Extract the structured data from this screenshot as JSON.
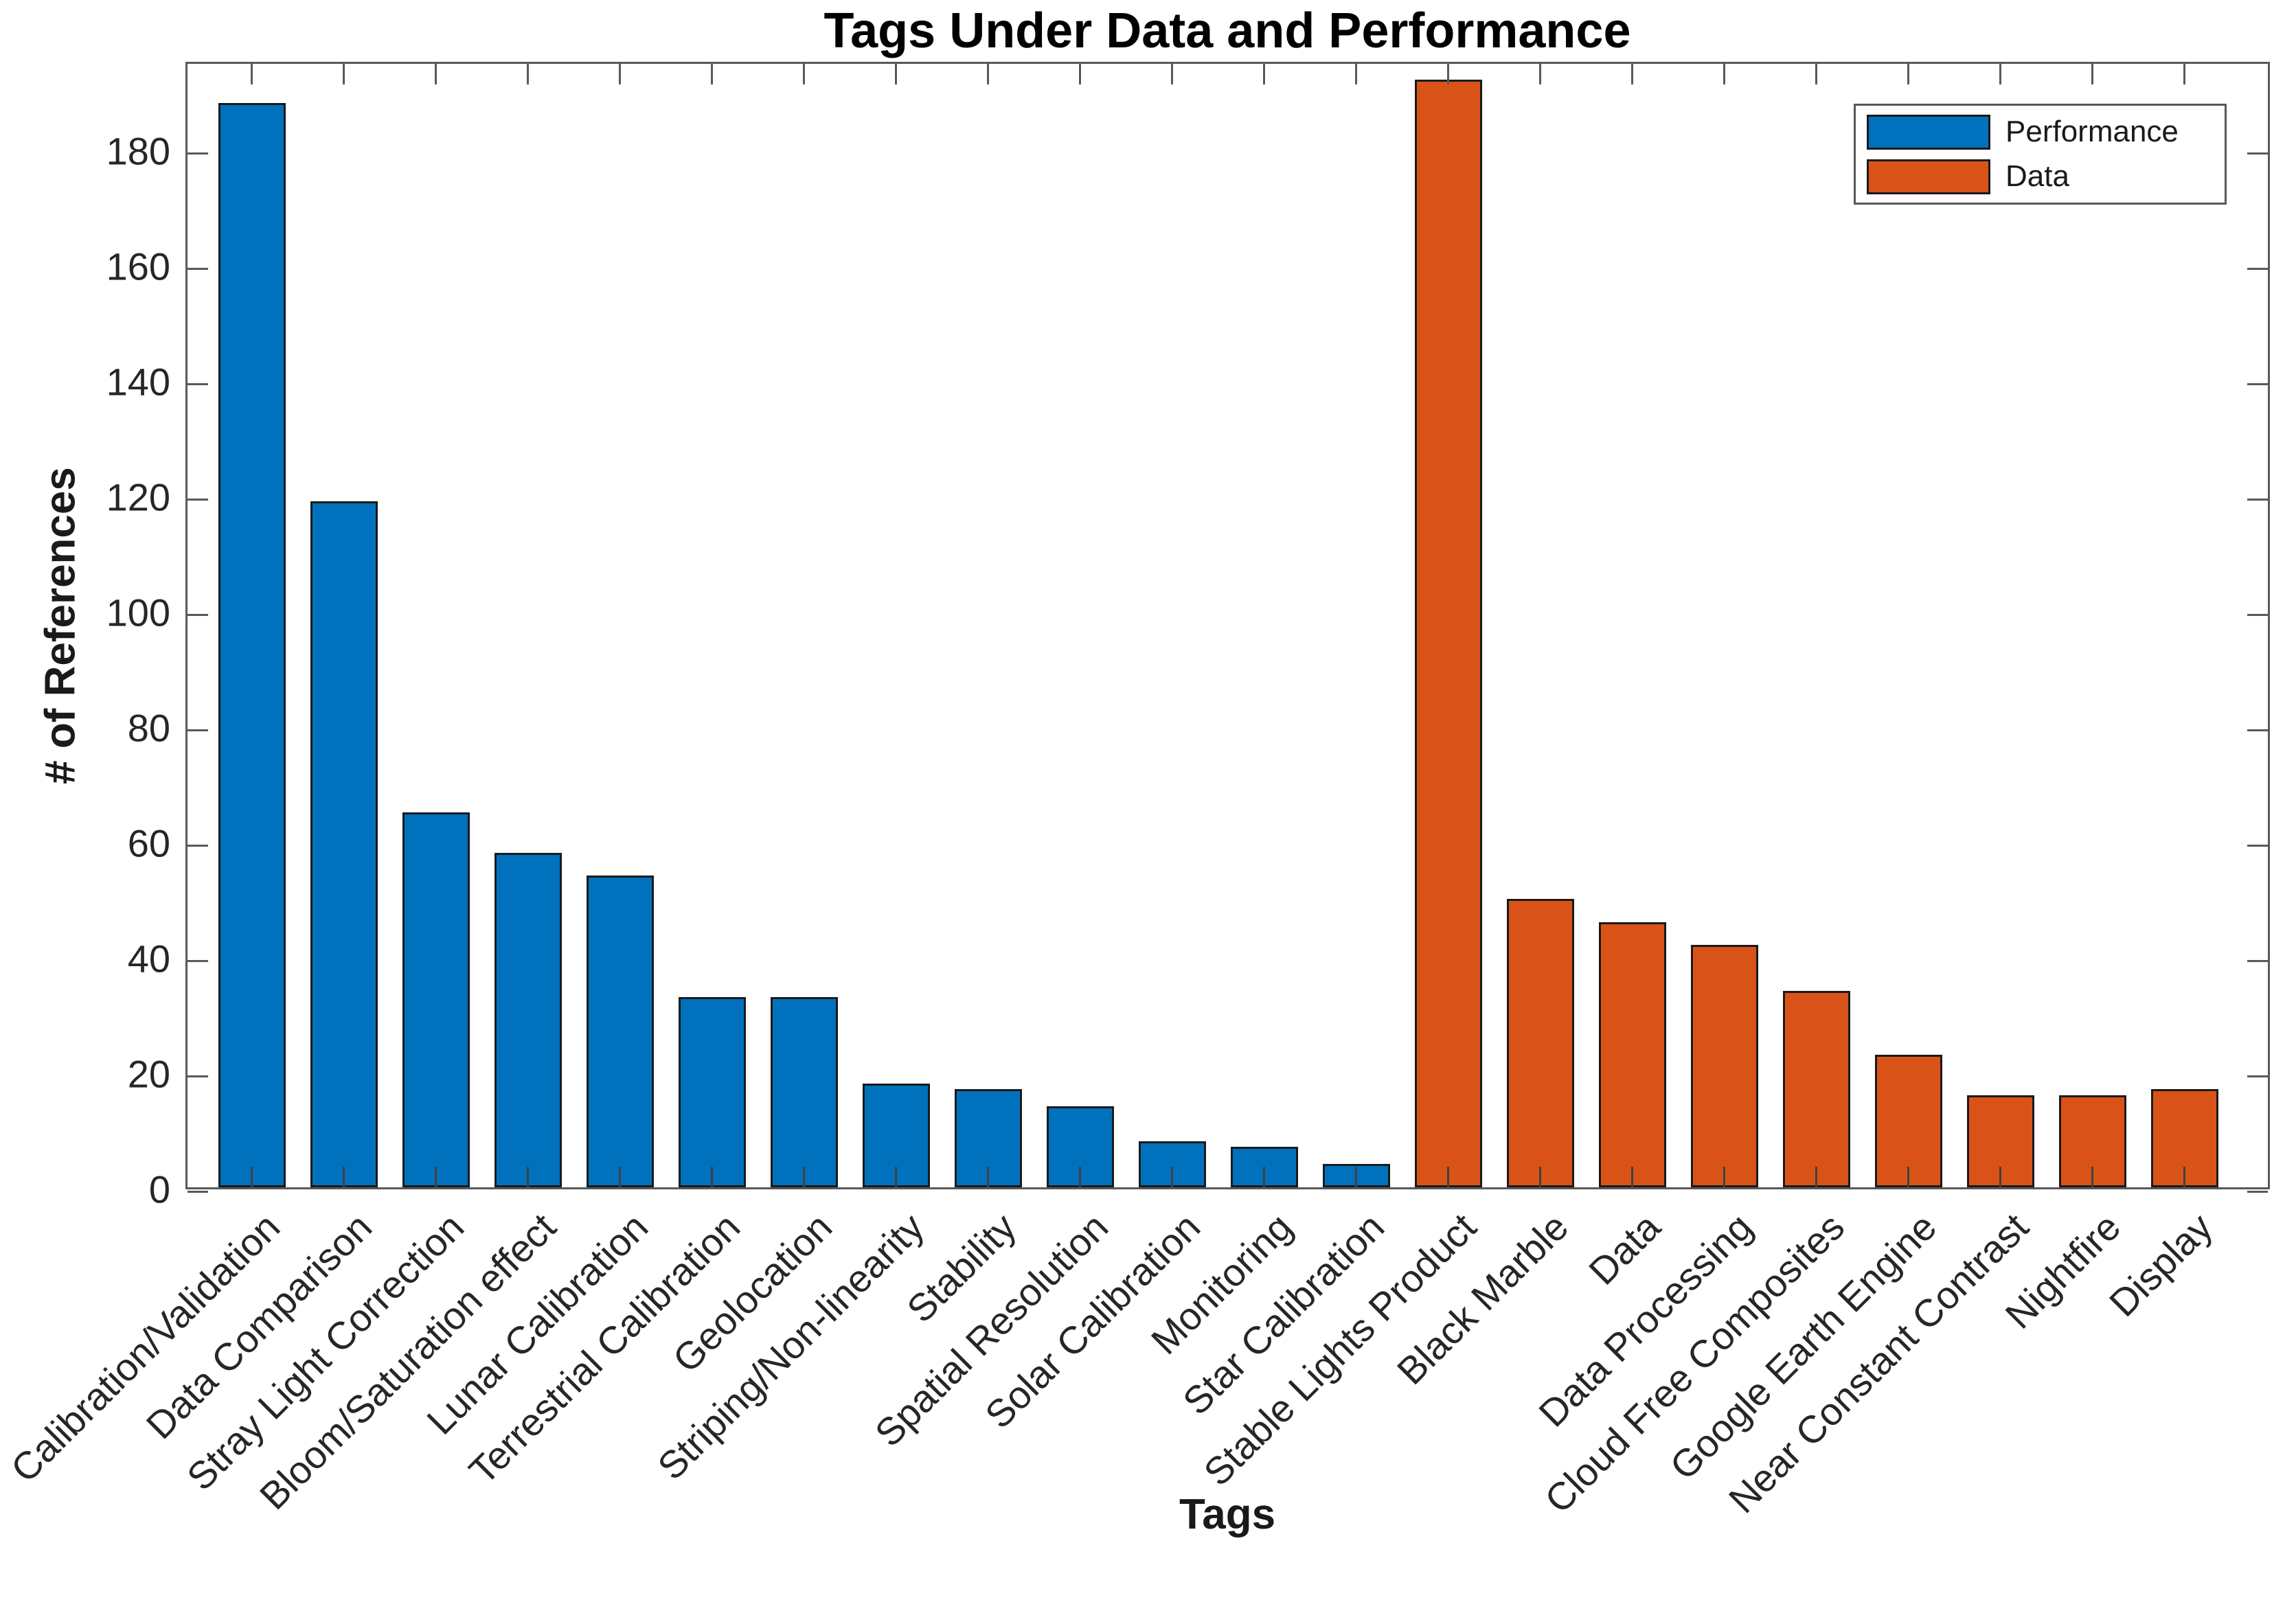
{
  "title": "Tags Under Data and Performance",
  "axes": {
    "xlabel": "Tags",
    "ylabel": "# of References"
  },
  "legend": {
    "position": "top-right",
    "entries": [
      {
        "label": "Performance",
        "color": "#0072BD"
      },
      {
        "label": "Data",
        "color": "#D95319"
      }
    ]
  },
  "style": {
    "frame_color": "#595959",
    "tick_color": "#595959",
    "tick_label_color": "#262626",
    "axis_label_color": "#1a1a1a",
    "title_color": "#000000",
    "bar_edge_color": "#1a1a1a",
    "background": "#ffffff"
  },
  "chart_data": {
    "type": "bar",
    "title": "Tags Under Data and Performance",
    "xlabel": "Tags",
    "ylabel": "# of References",
    "ylim": [
      0,
      195.5
    ],
    "yticks": [
      0,
      20,
      40,
      60,
      80,
      100,
      120,
      140,
      160,
      180
    ],
    "grid": false,
    "legend_position": "top-right",
    "series": [
      {
        "name": "Performance",
        "color": "#0072BD"
      },
      {
        "name": "Data",
        "color": "#D95319"
      }
    ],
    "categories": [
      "Calibration/Validation",
      "Data Comparison",
      "Stray Light Correction",
      "Bloom/Saturation effect",
      "Lunar Calibration",
      "Terrestrial Calibration",
      "Geolocation",
      "Striping/Non-linearity",
      "Stability",
      "Spatial Resolution",
      "Solar Calibration",
      "Monitoring",
      "Star Calibration",
      "Stable Lights Product",
      "Black Marble",
      "Data",
      "Data Processing",
      "Cloud Free Composites",
      "Google Earth Engine",
      "Near Constant Contrast",
      "Nightfire",
      "Display"
    ],
    "values": [
      188,
      119,
      65,
      58,
      54,
      33,
      33,
      18,
      17,
      14,
      8,
      7,
      4,
      192,
      50,
      46,
      42,
      34,
      23,
      16,
      16,
      17
    ],
    "series_index": [
      0,
      0,
      0,
      0,
      0,
      0,
      0,
      0,
      0,
      0,
      0,
      0,
      0,
      1,
      1,
      1,
      1,
      1,
      1,
      1,
      1,
      1
    ]
  }
}
